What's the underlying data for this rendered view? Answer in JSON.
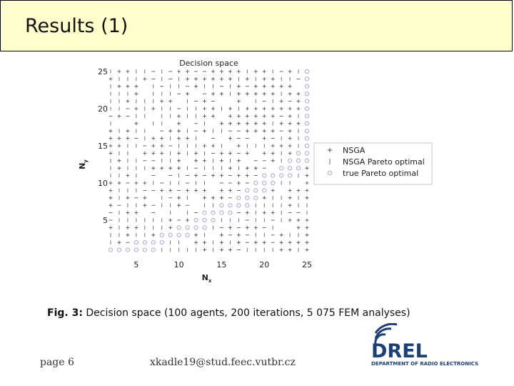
{
  "slide": {
    "title": "Results (1)",
    "caption_label": "Fig. 3:",
    "caption_text": " Decision space (100 agents, 200 iterations, 5 075 FEM analyses)",
    "page": "page 6",
    "email": "xkadle19@stud.feec.vutbr.cz",
    "logo_text": "DREL",
    "logo_sub": "DEPARTMENT OF RADIO ELECTRONICS",
    "colors": {
      "title_bg": "#ffffcc",
      "nsga": "#444444",
      "pareto": "#555555",
      "true_pareto": "#b3a3d9",
      "logo": "#1a3f7a"
    }
  },
  "chart_data": {
    "type": "scatter",
    "title": "Decision space",
    "xlabel": "N",
    "xlabel_sub": "x",
    "ylabel": "N",
    "ylabel_sub": "y",
    "xlim": [
      2,
      25
    ],
    "ylim": [
      0,
      25
    ],
    "xticks": [
      "5",
      "10",
      "15",
      "20",
      "25"
    ],
    "yticks": [
      "5",
      "10",
      "15",
      "20",
      "25"
    ],
    "legend_position": "right",
    "series": [
      {
        "name": "NSGA",
        "marker": "plus"
      },
      {
        "name": "NSGA Pareto optimal",
        "marker": "bar"
      },
      {
        "name": "true Pareto optimal",
        "marker": "circle"
      }
    ],
    "true_pareto_points": [
      [
        2,
        1
      ],
      [
        3,
        1
      ],
      [
        4,
        1
      ],
      [
        5,
        1
      ],
      [
        6,
        1
      ],
      [
        7,
        1
      ],
      [
        5,
        2
      ],
      [
        6,
        2
      ],
      [
        7,
        2
      ],
      [
        8,
        2
      ],
      [
        8,
        3
      ],
      [
        9,
        3
      ],
      [
        10,
        3
      ],
      [
        11,
        3
      ],
      [
        10,
        4
      ],
      [
        11,
        4
      ],
      [
        12,
        4
      ],
      [
        13,
        4
      ],
      [
        12,
        5
      ],
      [
        13,
        5
      ],
      [
        14,
        5
      ],
      [
        13,
        6
      ],
      [
        14,
        6
      ],
      [
        15,
        6
      ],
      [
        16,
        6
      ],
      [
        15,
        7
      ],
      [
        16,
        7
      ],
      [
        17,
        7
      ],
      [
        18,
        7
      ],
      [
        17,
        8
      ],
      [
        18,
        8
      ],
      [
        19,
        8
      ],
      [
        18,
        9
      ],
      [
        19,
        9
      ],
      [
        20,
        9
      ],
      [
        19,
        10
      ],
      [
        20,
        10
      ],
      [
        21,
        10
      ],
      [
        20,
        11
      ],
      [
        21,
        11
      ],
      [
        22,
        11
      ],
      [
        23,
        11
      ],
      [
        22,
        12
      ],
      [
        23,
        12
      ],
      [
        24,
        12
      ],
      [
        23,
        13
      ],
      [
        24,
        13
      ],
      [
        25,
        13
      ],
      [
        24,
        14
      ],
      [
        25,
        14
      ],
      [
        25,
        15
      ],
      [
        25,
        16
      ],
      [
        25,
        17
      ],
      [
        25,
        18
      ],
      [
        25,
        19
      ],
      [
        25,
        20
      ],
      [
        25,
        21
      ],
      [
        25,
        22
      ],
      [
        25,
        23
      ],
      [
        25,
        24
      ],
      [
        25,
        25
      ]
    ]
  }
}
